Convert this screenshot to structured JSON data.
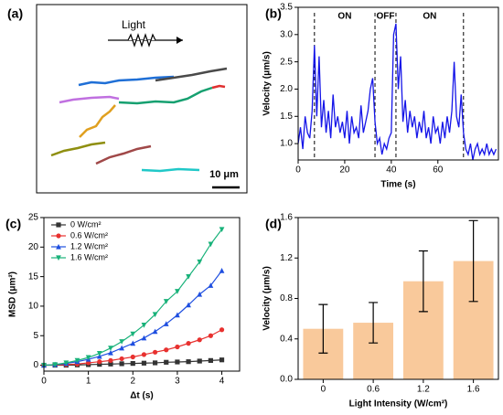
{
  "chart_data": [
    {
      "type": "image",
      "panel": "(a)",
      "annotation": "Light",
      "scale_bar": "10 μm"
    },
    {
      "type": "line",
      "panel": "(b)",
      "xlabel": "Time (s)",
      "ylabel": "Velocity (μm/s)",
      "x": [
        0,
        1,
        2,
        3,
        4,
        5,
        6,
        7,
        8,
        9,
        10,
        11,
        12,
        13,
        14,
        15,
        16,
        17,
        18,
        19,
        20,
        21,
        22,
        23,
        24,
        25,
        26,
        27,
        28,
        29,
        30,
        31,
        32,
        33,
        34,
        35,
        36,
        37,
        38,
        39,
        40,
        41,
        42,
        43,
        44,
        45,
        46,
        47,
        48,
        49,
        50,
        51,
        52,
        53,
        54,
        55,
        56,
        57,
        58,
        59,
        60,
        61,
        62,
        63,
        64,
        65,
        66,
        67,
        68,
        69,
        70,
        71,
        72,
        73,
        74,
        75,
        76,
        77,
        78,
        79,
        80,
        81,
        82,
        83,
        84,
        85
      ],
      "series": [
        {
          "color": "#1515e8",
          "values": [
            1.0,
            1.3,
            0.9,
            1.5,
            1.2,
            1.1,
            1.6,
            2.8,
            1.5,
            2.6,
            1.3,
            1.8,
            1.2,
            1.6,
            1.1,
            1.9,
            1.3,
            1.5,
            1.2,
            1.4,
            1.1,
            1.6,
            1.0,
            1.5,
            1.2,
            1.3,
            1.1,
            1.7,
            1.2,
            1.4,
            1.6,
            2.0,
            2.2,
            1.4,
            1.0,
            1.1,
            0.8,
            1.0,
            0.9,
            1.1,
            1.2,
            3.0,
            3.2,
            2.0,
            2.6,
            1.4,
            1.8,
            1.2,
            1.6,
            1.3,
            1.5,
            1.1,
            1.4,
            1.2,
            1.6,
            1.1,
            1.3,
            1.0,
            1.5,
            1.2,
            1.3,
            1.0,
            1.4,
            1.1,
            1.5,
            1.2,
            1.6,
            2.5,
            1.5,
            1.3,
            1.9,
            1.2,
            0.9,
            0.8,
            1.0,
            0.7,
            0.9,
            1.0,
            0.8,
            0.9,
            0.8,
            1.0,
            0.8,
            0.9,
            0.8,
            0.9
          ]
        }
      ],
      "xlim": [
        0,
        86
      ],
      "ylim": [
        0.7,
        3.5
      ],
      "xticks": [
        0,
        20,
        40,
        60
      ],
      "yticks": [
        {
          "value": 1.0,
          "label": "1.0"
        },
        1.5,
        {
          "value": 2.0,
          "label": "2.0"
        },
        2.5,
        {
          "value": 3.0,
          "label": "3.0"
        },
        3.5
      ],
      "vlines": [
        7,
        33,
        42,
        71
      ],
      "annotations": [
        "ON",
        "OFF",
        "ON"
      ]
    },
    {
      "type": "line",
      "panel": "(c)",
      "xlabel": "Δt (s)",
      "ylabel": "MSD (μm²)",
      "legend": "upper left",
      "x": [
        0,
        0.25,
        0.5,
        0.75,
        1,
        1.25,
        1.5,
        1.75,
        2,
        2.25,
        2.5,
        2.75,
        3,
        3.25,
        3.5,
        3.75,
        4
      ],
      "series": [
        {
          "name": "0 W/cm²",
          "color": "#333333",
          "marker": "square",
          "values": [
            0,
            0,
            0,
            0.05,
            0.1,
            0.15,
            0.2,
            0.25,
            0.3,
            0.35,
            0.4,
            0.5,
            0.55,
            0.6,
            0.7,
            0.8,
            0.9
          ]
        },
        {
          "name": "0.6 W/cm²",
          "color": "#e8312f",
          "marker": "circle",
          "values": [
            0,
            0.05,
            0.1,
            0.2,
            0.4,
            0.6,
            0.8,
            1.1,
            1.4,
            1.8,
            2.2,
            2.6,
            3.1,
            3.7,
            4.3,
            5.0,
            6.0
          ]
        },
        {
          "name": "1.2 W/cm²",
          "color": "#1f4fe0",
          "marker": "triangle-up",
          "values": [
            0,
            0.1,
            0.3,
            0.6,
            1.0,
            1.5,
            2.1,
            2.9,
            3.7,
            4.6,
            5.7,
            7.0,
            8.5,
            10.2,
            12.0,
            13.5,
            16.0
          ]
        },
        {
          "name": "1.6 W/cm²",
          "color": "#19b27a",
          "marker": "triangle-down",
          "values": [
            0,
            0.1,
            0.4,
            0.8,
            1.3,
            2.0,
            2.9,
            4.0,
            5.3,
            6.8,
            8.6,
            10.8,
            12.5,
            15.0,
            17.5,
            20.5,
            23.0
          ]
        }
      ],
      "xlim": [
        0,
        4.4
      ],
      "ylim": [
        -1,
        25
      ],
      "xticks": [
        0,
        1,
        2,
        3,
        4
      ],
      "yticks": [
        0,
        5,
        10,
        15,
        20,
        25
      ]
    },
    {
      "type": "bar",
      "panel": "(d)",
      "xlabel": "Light Intensity (W/cm²)",
      "ylabel": "Velocity (μm/s)",
      "categories": [
        "0",
        "0.6",
        "1.2",
        "1.6"
      ],
      "values": [
        0.5,
        0.56,
        0.97,
        1.17
      ],
      "errors": [
        0.24,
        0.2,
        0.3,
        0.4
      ],
      "color": "#f9c99b",
      "ylim": [
        0,
        1.6
      ],
      "yticks": [
        {
          "value": 0,
          "label": "0.0"
        },
        0.4,
        0.8,
        1.2,
        1.6
      ]
    }
  ]
}
